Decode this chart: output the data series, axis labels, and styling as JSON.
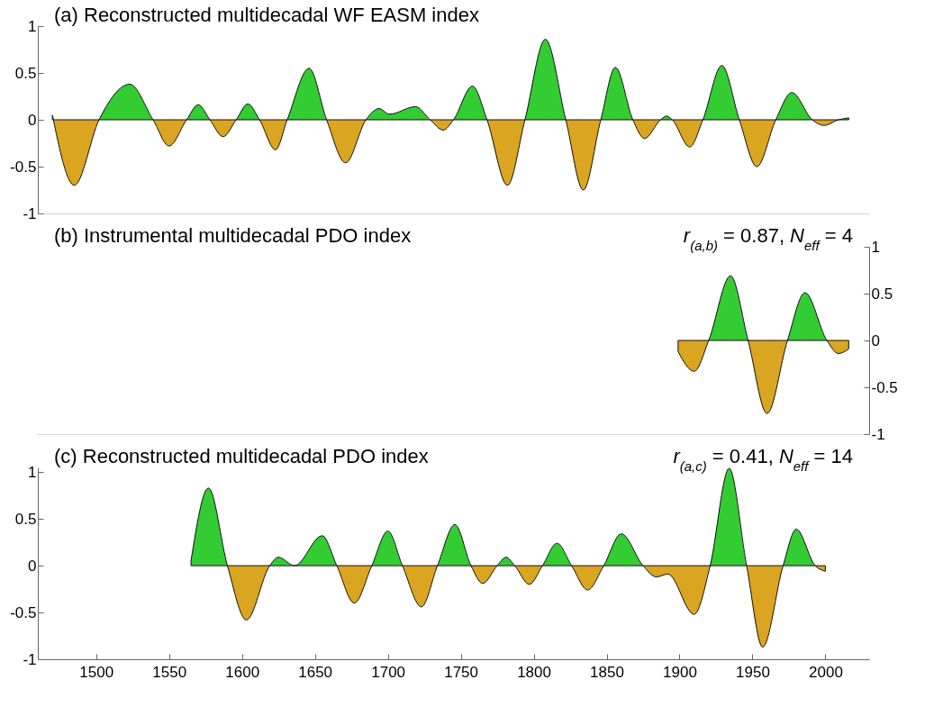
{
  "chart_data": [
    {
      "type": "area",
      "title": "(a) Reconstructed multidecadal WF EASM index",
      "tick_labels": "y",
      "x": [
        1470,
        1485,
        1502,
        1523,
        1539,
        1550,
        1562,
        1570,
        1578,
        1587,
        1596,
        1604,
        1612,
        1623,
        1631,
        1646,
        1658,
        1671,
        1685,
        1694,
        1701,
        1719,
        1729,
        1738,
        1745,
        1758,
        1768,
        1782,
        1794,
        1808,
        1822,
        1834,
        1846,
        1856,
        1868,
        1876,
        1887,
        1891,
        1895,
        1907,
        1916,
        1929,
        1941,
        1953,
        1966,
        1977,
        1991,
        1999,
        2009,
        2016
      ],
      "series": [
        {
          "colors": [
            "#33cc33",
            "#daa520",
            "#33cc33",
            "#33cc33",
            "#33cc33",
            "#daa520",
            "#33cc33",
            "#33cc33",
            "#33cc33",
            "#daa520",
            "#33cc33",
            "#33cc33",
            "#33cc33",
            "#daa520",
            "#33cc33",
            "#33cc33",
            "#33cc33",
            "#daa520",
            "#33cc33",
            "#33cc33",
            "#33cc33",
            "#33cc33",
            "#33cc33",
            "#daa520",
            "#33cc33",
            "#33cc33",
            "#33cc33",
            "#daa520",
            "#33cc33",
            "#33cc33",
            "#33cc33",
            "#daa520",
            "#33cc33",
            "#33cc33",
            "#33cc33",
            "#daa520",
            "#33cc33",
            "#33cc33",
            "#33cc33",
            "#daa520",
            "#33cc33",
            "#33cc33",
            "#33cc33",
            "#daa520",
            "#33cc33",
            "#33cc33",
            "#33cc33",
            "#daa520",
            "#33cc33",
            "#33cc33"
          ],
          "values": [
            0.05,
            -0.7,
            0,
            0.38,
            0,
            -0.28,
            0,
            0.16,
            0,
            -0.18,
            0,
            0.17,
            0,
            -0.32,
            0,
            0.55,
            0,
            -0.46,
            0,
            0.12,
            0.06,
            0.14,
            0,
            -0.11,
            0,
            0.36,
            0,
            -0.7,
            0,
            0.86,
            0,
            -0.75,
            0,
            0.56,
            0,
            -0.2,
            0,
            0.04,
            0,
            -0.29,
            0,
            0.58,
            0,
            -0.5,
            0,
            0.29,
            0,
            -0.06,
            0,
            0.02
          ]
        }
      ],
      "xlim": [
        1460,
        2030
      ],
      "ylim": [
        -1,
        1
      ],
      "yticks": [
        -1,
        -0.5,
        0,
        0.5,
        1
      ]
    },
    {
      "type": "area",
      "title": "(b) Instrumental multidecadal PDO index",
      "annotations": [
        "r$_{(a,b)}$ = 0.87, N$_{eff}$ = 4"
      ],
      "tick_labels": "y2",
      "x": [
        1899,
        1910,
        1920,
        1935,
        1947,
        1960,
        1974,
        1986,
        2001,
        2009,
        2016
      ],
      "series": [
        {
          "axis": "y2",
          "colors": [
            "#daa520",
            "#daa520",
            "#33cc33",
            "#33cc33",
            "#33cc33",
            "#daa520",
            "#33cc33",
            "#33cc33",
            "#33cc33",
            "#daa520",
            "#daa520"
          ],
          "values": [
            -0.12,
            -0.33,
            0,
            0.69,
            0,
            -0.78,
            0,
            0.51,
            0,
            -0.14,
            -0.09
          ]
        }
      ],
      "xlim": [
        1460,
        2030
      ],
      "y2lim": [
        -1,
        1
      ],
      "y2ticks": [
        -1,
        -0.5,
        0,
        0.5,
        1
      ]
    },
    {
      "type": "area",
      "title": "(c) Reconstructed multidecadal PDO index",
      "annotations": [
        "r$_{(a,c)}$ = 0.41, N$_{eff}$ = 14"
      ],
      "x": [
        1565,
        1577,
        1590,
        1603,
        1619,
        1625,
        1636,
        1655,
        1665,
        1677,
        1689,
        1700,
        1710,
        1723,
        1734,
        1746,
        1757,
        1765,
        1775,
        1781,
        1787,
        1797,
        1806,
        1816,
        1826,
        1837,
        1848,
        1860,
        1875,
        1884,
        1892,
        1910,
        1921,
        1934,
        1946,
        1957,
        1971,
        1980,
        1993,
        2000
      ],
      "series": [
        {
          "colors": [
            "#33cc33",
            "#33cc33",
            "#33cc33",
            "#daa520",
            "#33cc33",
            "#33cc33",
            "#33cc33",
            "#33cc33",
            "#33cc33",
            "#daa520",
            "#33cc33",
            "#33cc33",
            "#33cc33",
            "#daa520",
            "#33cc33",
            "#33cc33",
            "#33cc33",
            "#daa520",
            "#33cc33",
            "#33cc33",
            "#33cc33",
            "#daa520",
            "#33cc33",
            "#33cc33",
            "#33cc33",
            "#daa520",
            "#33cc33",
            "#33cc33",
            "#33cc33",
            "#daa520",
            "#daa520",
            "#daa520",
            "#33cc33",
            "#33cc33",
            "#33cc33",
            "#daa520",
            "#33cc33",
            "#33cc33",
            "#33cc33",
            "#daa520"
          ],
          "values": [
            0.05,
            0.83,
            0,
            -0.58,
            0,
            0.09,
            0,
            0.32,
            0,
            -0.4,
            0,
            0.37,
            0,
            -0.44,
            0,
            0.44,
            0,
            -0.19,
            0,
            0.09,
            0,
            -0.2,
            0,
            0.24,
            0,
            -0.26,
            0,
            0.34,
            0,
            -0.12,
            -0.09,
            -0.52,
            0,
            1.04,
            0,
            -0.87,
            0,
            0.39,
            0,
            -0.06
          ]
        }
      ],
      "xlim": [
        1460,
        2030
      ],
      "xticks": [
        1500,
        1550,
        1600,
        1650,
        1700,
        1750,
        1800,
        1850,
        1900,
        1950,
        2000
      ],
      "ylim": [
        -1,
        1.05
      ],
      "yticks": [
        -1,
        -0.5,
        0,
        0.5,
        1
      ]
    }
  ]
}
